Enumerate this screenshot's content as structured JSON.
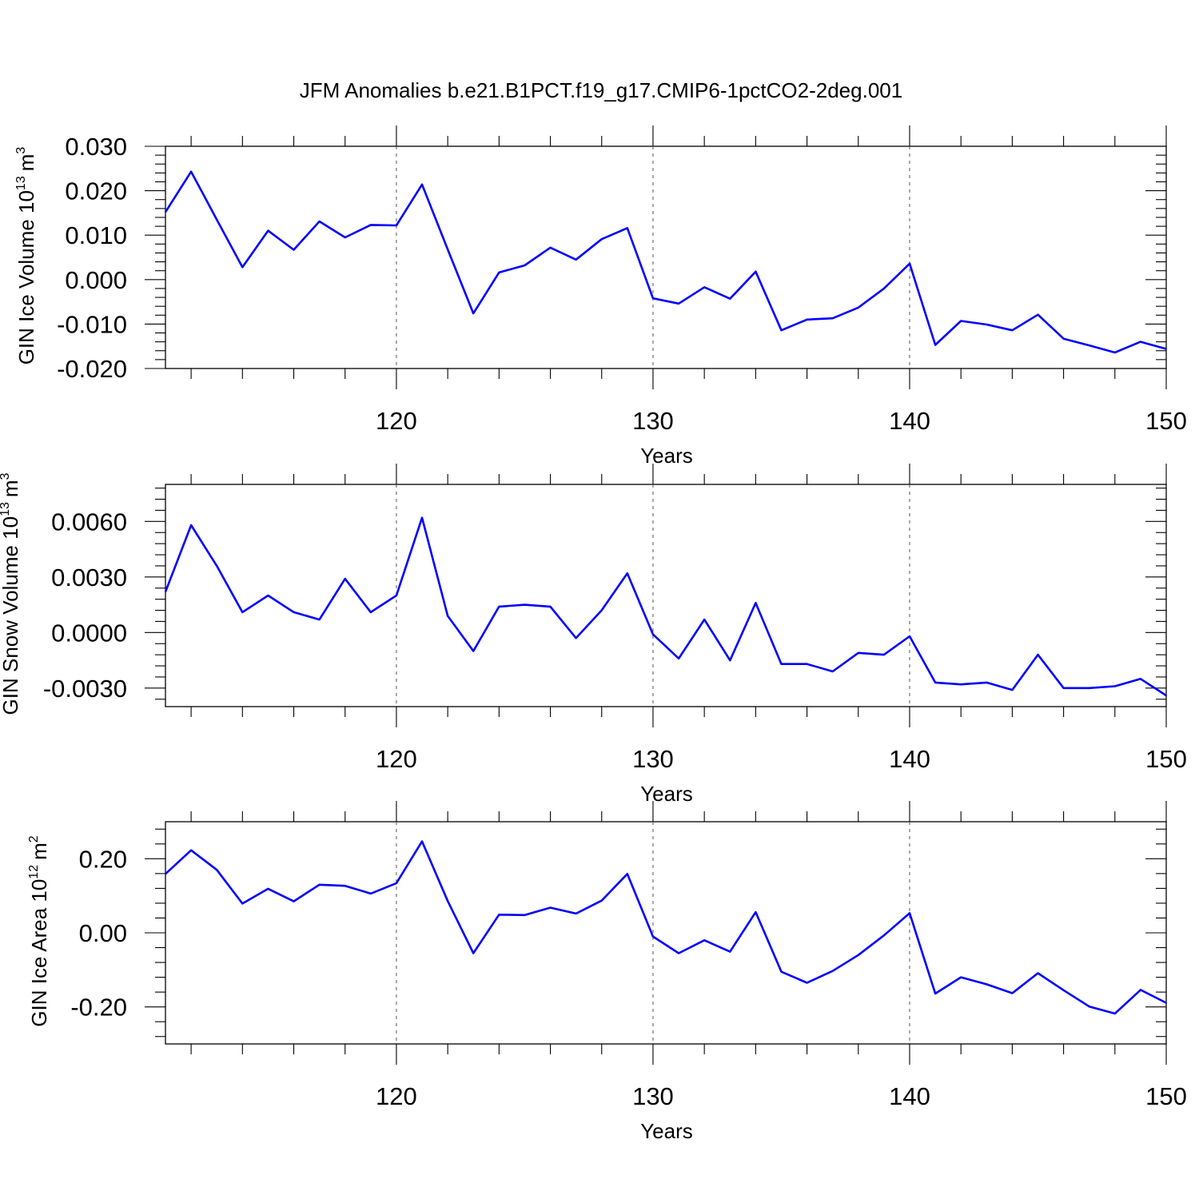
{
  "title": "JFM Anomalies b.e21.B1PCT.f19_g17.CMIP6-1pctCO2-2deg.001",
  "chart_data": [
    {
      "type": "line",
      "ylabel": "GIN Ice Volume 10",
      "ylabel_sup": "13",
      "ylabel_unit": "m",
      "ylabel_unit_sup": "3",
      "xlabel": "Years",
      "xlim": [
        111,
        150
      ],
      "ylim": [
        -0.02,
        0.03
      ],
      "yticks": [
        0.03,
        0.02,
        0.01,
        0.0,
        -0.01,
        -0.02
      ],
      "ytick_labels": [
        "0.030",
        "0.020",
        "0.010",
        "0.000",
        "-0.010",
        "-0.020"
      ],
      "xticks": [
        120,
        130,
        140,
        150
      ],
      "xtick_labels": [
        "120",
        "130",
        "140",
        "150"
      ],
      "series": [
        {
          "color": "#0000ff",
          "x": [
            111,
            112,
            113,
            114,
            115,
            116,
            117,
            118,
            119,
            120,
            121,
            122,
            123,
            124,
            125,
            126,
            127,
            128,
            129,
            130,
            131,
            132,
            133,
            134,
            135,
            136,
            137,
            138,
            139,
            140,
            141,
            142,
            143,
            144,
            145,
            146,
            147,
            148,
            149,
            150
          ],
          "values": [
            0.0152,
            0.0243,
            0.0135,
            0.0028,
            0.011,
            0.0067,
            0.0131,
            0.0095,
            0.0123,
            0.0122,
            0.0214,
            0.0068,
            -0.0076,
            0.0016,
            0.0032,
            0.0072,
            0.0045,
            0.0091,
            0.0116,
            -0.0042,
            -0.0054,
            -0.0017,
            -0.0043,
            0.0018,
            -0.0114,
            -0.009,
            -0.0087,
            -0.0063,
            -0.002,
            0.0036,
            -0.0147,
            -0.0093,
            -0.0101,
            -0.0114,
            -0.0079,
            -0.0133,
            -0.0148,
            -0.0164,
            -0.014,
            -0.0156
          ]
        }
      ]
    },
    {
      "type": "line",
      "ylabel": "GIN Snow Volume 10",
      "ylabel_sup": "13",
      "ylabel_unit": "m",
      "ylabel_unit_sup": "3",
      "xlabel": "Years",
      "xlim": [
        111,
        150
      ],
      "ylim": [
        -0.004,
        0.008
      ],
      "yticks": [
        0.006,
        0.003,
        0.0,
        -0.003
      ],
      "ytick_labels": [
        "0.0060",
        "0.0030",
        "0.0000",
        "-0.0030"
      ],
      "xticks": [
        120,
        130,
        140,
        150
      ],
      "xtick_labels": [
        "120",
        "130",
        "140",
        "150"
      ],
      "series": [
        {
          "color": "#0000ff",
          "x": [
            111,
            112,
            113,
            114,
            115,
            116,
            117,
            118,
            119,
            120,
            121,
            122,
            123,
            124,
            125,
            126,
            127,
            128,
            129,
            130,
            131,
            132,
            133,
            134,
            135,
            136,
            137,
            138,
            139,
            140,
            141,
            142,
            143,
            144,
            145,
            146,
            147,
            148,
            149,
            150
          ],
          "values": [
            0.0022,
            0.0058,
            0.0036,
            0.0011,
            0.002,
            0.0011,
            0.0007,
            0.0029,
            0.0011,
            0.002,
            0.0062,
            0.0009,
            -0.001,
            0.0014,
            0.0015,
            0.0014,
            -0.0003,
            0.0012,
            0.0032,
            -0.0001,
            -0.0014,
            0.0007,
            -0.0015,
            0.0016,
            -0.0017,
            -0.0017,
            -0.0021,
            -0.0011,
            -0.0012,
            -0.0002,
            -0.0027,
            -0.0028,
            -0.0027,
            -0.0031,
            -0.0012,
            -0.003,
            -0.003,
            -0.0029,
            -0.0025,
            -0.0034
          ]
        }
      ]
    },
    {
      "type": "line",
      "ylabel": "GIN Ice Area 10",
      "ylabel_sup": "12",
      "ylabel_unit": "m",
      "ylabel_unit_sup": "2",
      "xlabel": "Years",
      "xlim": [
        111,
        150
      ],
      "ylim": [
        -0.3,
        0.3
      ],
      "yticks": [
        0.2,
        0.0,
        -0.2
      ],
      "ytick_labels": [
        "0.20",
        "0.00",
        "-0.20"
      ],
      "xticks": [
        120,
        130,
        140,
        150
      ],
      "xtick_labels": [
        "120",
        "130",
        "140",
        "150"
      ],
      "series": [
        {
          "color": "#0000ff",
          "x": [
            111,
            112,
            113,
            114,
            115,
            116,
            117,
            118,
            119,
            120,
            121,
            122,
            123,
            124,
            125,
            126,
            127,
            128,
            129,
            130,
            131,
            132,
            133,
            134,
            135,
            136,
            137,
            138,
            139,
            140,
            141,
            142,
            143,
            144,
            145,
            146,
            147,
            148,
            149,
            150
          ],
          "values": [
            0.159,
            0.223,
            0.17,
            0.079,
            0.119,
            0.085,
            0.13,
            0.127,
            0.106,
            0.134,
            0.247,
            0.086,
            -0.055,
            0.049,
            0.048,
            0.068,
            0.052,
            0.087,
            0.159,
            -0.01,
            -0.055,
            -0.02,
            -0.051,
            0.056,
            -0.105,
            -0.135,
            -0.103,
            -0.06,
            -0.007,
            0.053,
            -0.164,
            -0.12,
            -0.139,
            -0.163,
            -0.109,
            -0.155,
            -0.199,
            -0.218,
            -0.154,
            -0.189
          ]
        }
      ]
    }
  ]
}
